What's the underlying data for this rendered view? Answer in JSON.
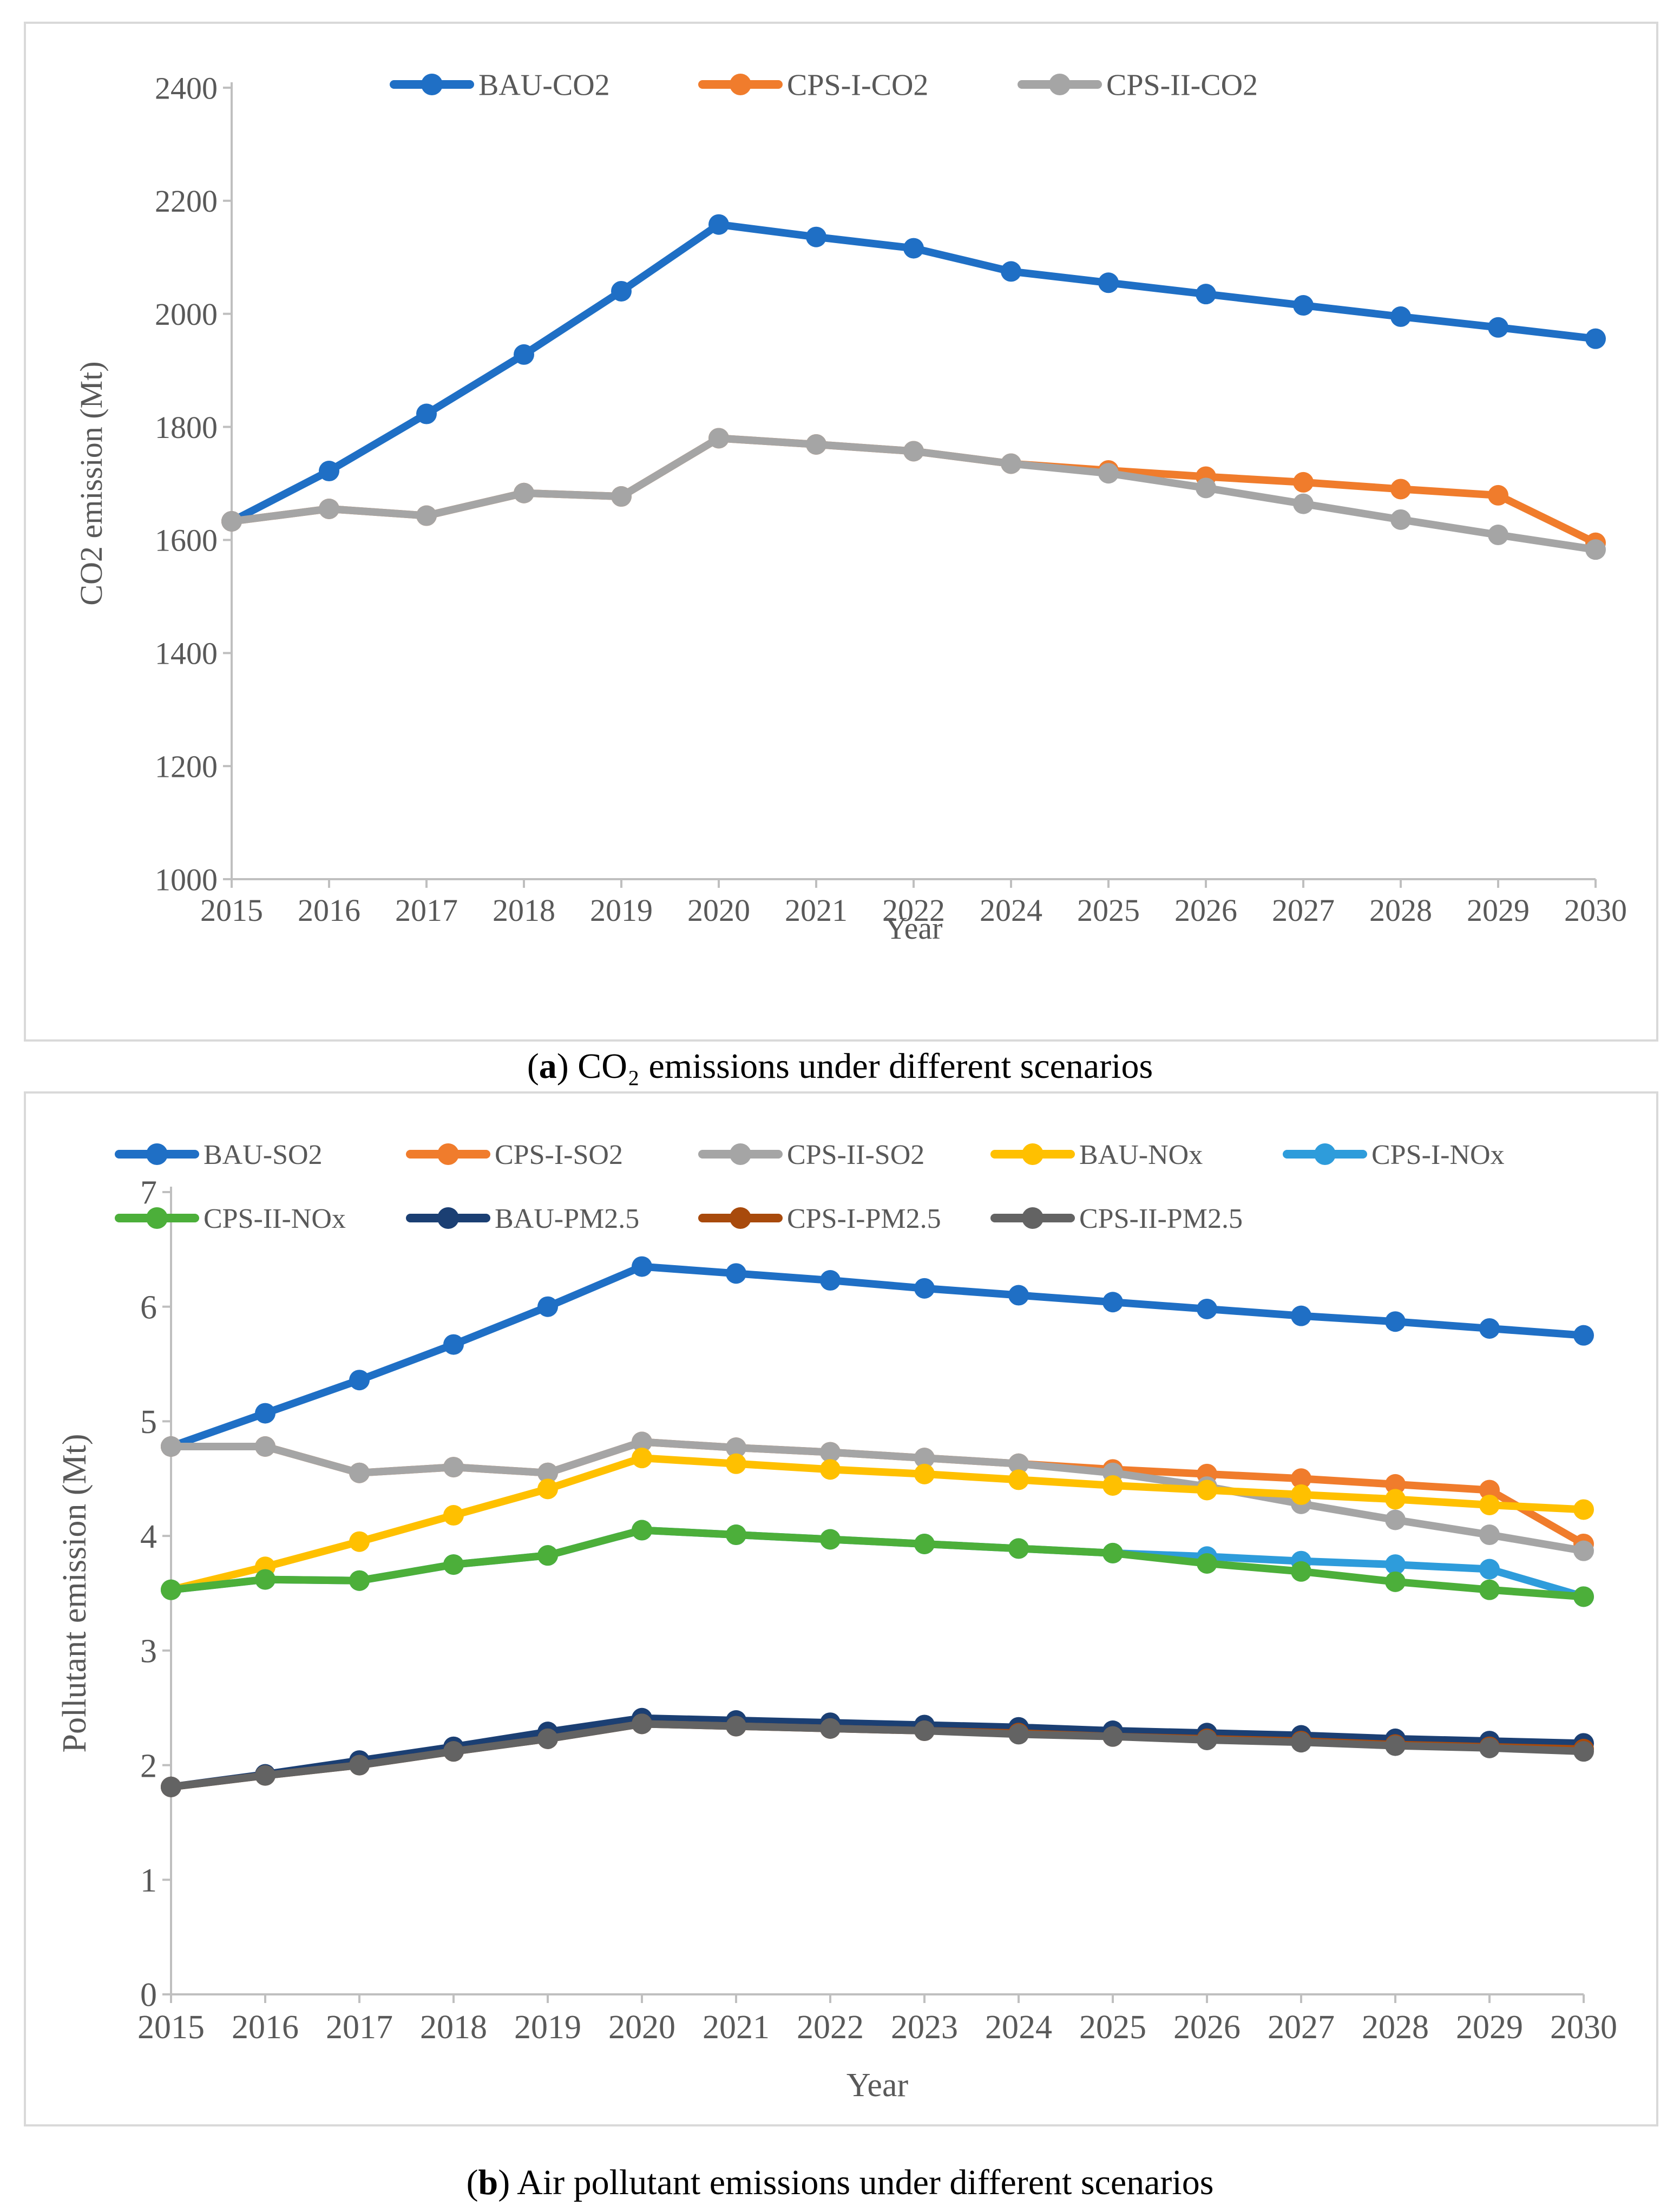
{
  "chart_data": [
    {
      "type": "line",
      "panel": "a",
      "caption_label": "a",
      "caption_text": "CO₂ emissions under different scenarios",
      "xlabel": "Year",
      "ylabel": "CO2 emission  (Mt)",
      "ylim": [
        1000,
        2400
      ],
      "yticks": [
        1000,
        1200,
        1400,
        1600,
        1800,
        2000,
        2200,
        2400
      ],
      "categories": [
        "2015",
        "2016",
        "2017",
        "2018",
        "2019",
        "2020",
        "2021",
        "2022",
        "2024",
        "2025",
        "2026",
        "2027",
        "2028",
        "2029",
        "2030"
      ],
      "legend_position": "top",
      "series": [
        {
          "name": "BAU-CO2",
          "color": "#1F6FC5",
          "values": [
            1633,
            1722,
            1823,
            1928,
            2040,
            2158,
            2136,
            2116,
            2075,
            2055,
            2035,
            2015,
            1995,
            1976,
            1956
          ]
        },
        {
          "name": "CPS-I-CO2",
          "color": "#F07C2C",
          "values": [
            1633,
            1655,
            1643,
            1683,
            1677,
            1780,
            1769,
            1757,
            1735,
            1723,
            1712,
            1702,
            1690,
            1679,
            1595
          ]
        },
        {
          "name": "CPS-II-CO2",
          "color": "#A5A5A5",
          "values": [
            1633,
            1655,
            1643,
            1683,
            1677,
            1780,
            1769,
            1757,
            1735,
            1718,
            1692,
            1664,
            1636,
            1609,
            1583
          ]
        }
      ]
    },
    {
      "type": "line",
      "panel": "b",
      "caption_label": "b",
      "caption_text": "Air pollutant emissions under different scenarios",
      "xlabel": "Year",
      "ylabel": "Pollutant emission (Mt)",
      "ylim": [
        0,
        7
      ],
      "yticks": [
        0,
        1,
        2,
        3,
        4,
        5,
        6,
        7
      ],
      "categories": [
        "2015",
        "2016",
        "2017",
        "2018",
        "2019",
        "2020",
        "2021",
        "2022",
        "2023",
        "2024",
        "2025",
        "2026",
        "2027",
        "2028",
        "2029",
        "2030"
      ],
      "legend_position": "top",
      "series": [
        {
          "name": "BAU-SO2",
          "color": "#1F6FC5",
          "values": [
            4.78,
            5.07,
            5.36,
            5.67,
            6.0,
            6.35,
            6.29,
            6.23,
            6.16,
            6.1,
            6.04,
            5.98,
            5.92,
            5.87,
            5.81,
            5.75
          ]
        },
        {
          "name": "CPS-I-SO2",
          "color": "#F07C2C",
          "values": [
            4.78,
            4.78,
            4.55,
            4.6,
            4.55,
            4.82,
            4.77,
            4.73,
            4.68,
            4.63,
            4.58,
            4.54,
            4.5,
            4.45,
            4.4,
            3.93
          ]
        },
        {
          "name": "CPS-II-SO2",
          "color": "#A5A5A5",
          "values": [
            4.78,
            4.78,
            4.55,
            4.6,
            4.55,
            4.82,
            4.77,
            4.73,
            4.68,
            4.63,
            4.55,
            4.43,
            4.28,
            4.14,
            4.01,
            3.87
          ]
        },
        {
          "name": "BAU-NOx",
          "color": "#FFC000",
          "values": [
            3.53,
            3.73,
            3.95,
            4.18,
            4.41,
            4.68,
            4.63,
            4.58,
            4.54,
            4.49,
            4.44,
            4.4,
            4.36,
            4.32,
            4.27,
            4.23
          ]
        },
        {
          "name": "CPS-I-NOx",
          "color": "#2E9CDB",
          "values": [
            3.53,
            3.62,
            3.61,
            3.75,
            3.83,
            4.05,
            4.01,
            3.97,
            3.93,
            3.89,
            3.85,
            3.82,
            3.78,
            3.75,
            3.71,
            3.47
          ]
        },
        {
          "name": "CPS-II-NOx",
          "color": "#4CAF3A",
          "values": [
            3.53,
            3.62,
            3.61,
            3.75,
            3.83,
            4.05,
            4.01,
            3.97,
            3.93,
            3.89,
            3.85,
            3.76,
            3.69,
            3.6,
            3.53,
            3.47
          ]
        },
        {
          "name": "BAU-PM2.5",
          "color": "#1B3F73",
          "values": [
            1.81,
            1.92,
            2.04,
            2.16,
            2.29,
            2.41,
            2.39,
            2.37,
            2.35,
            2.33,
            2.3,
            2.28,
            2.26,
            2.23,
            2.21,
            2.19
          ]
        },
        {
          "name": "CPS-I-PM2.5",
          "color": "#A84A0C",
          "values": [
            1.81,
            1.91,
            2.0,
            2.12,
            2.23,
            2.36,
            2.34,
            2.32,
            2.3,
            2.28,
            2.25,
            2.23,
            2.21,
            2.18,
            2.16,
            2.14
          ]
        },
        {
          "name": "CPS-II-PM2.5",
          "color": "#636363",
          "values": [
            1.81,
            1.91,
            2.0,
            2.12,
            2.23,
            2.36,
            2.34,
            2.32,
            2.3,
            2.27,
            2.25,
            2.22,
            2.2,
            2.17,
            2.15,
            2.12
          ]
        }
      ]
    }
  ]
}
